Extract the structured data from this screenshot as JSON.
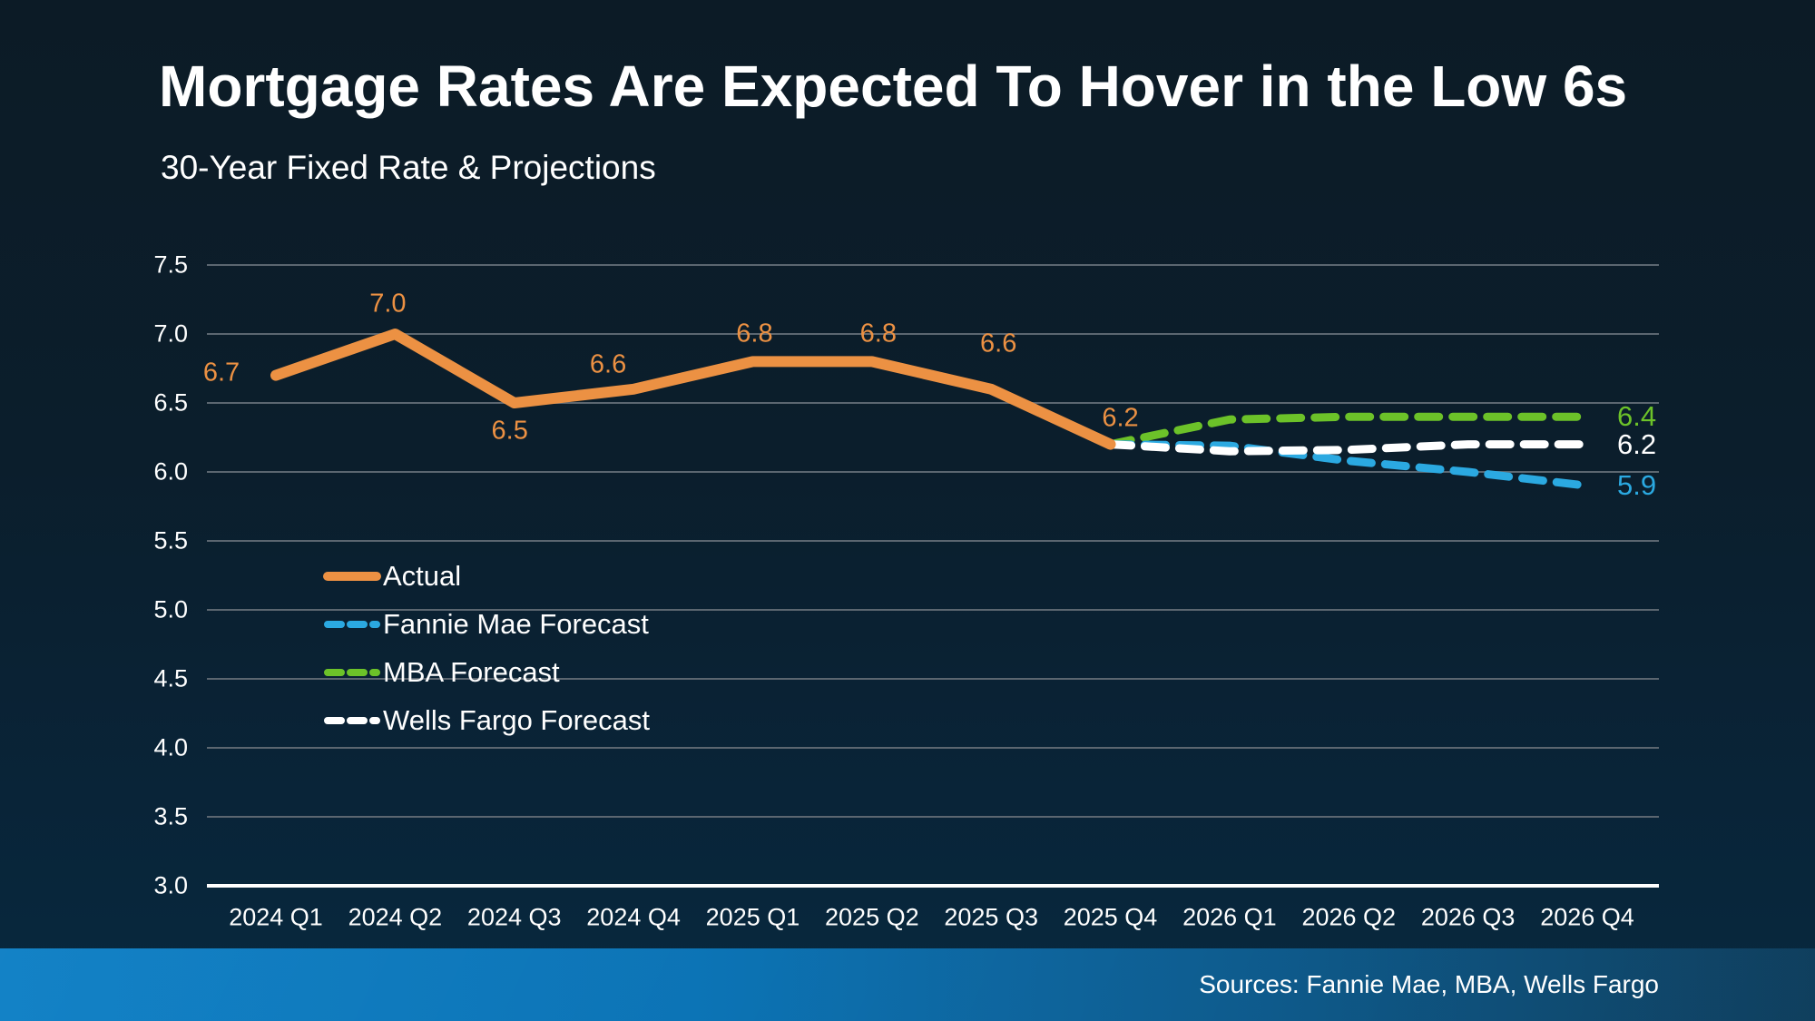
{
  "header": {
    "title": "Mortgage Rates Are Expected To Hover in the Low 6s",
    "subtitle": "30-Year Fixed Rate & Projections"
  },
  "footer": {
    "sources": "Sources: Fannie Mae, MBA, Wells Fargo"
  },
  "chart_data": {
    "type": "line",
    "title": "Mortgage Rates Are Expected To Hover in the Low 6s",
    "subtitle": "30-Year Fixed Rate & Projections",
    "categories": [
      "2024 Q1",
      "2024 Q2",
      "2024 Q3",
      "2024 Q4",
      "2025 Q1",
      "2025 Q2",
      "2025 Q3",
      "2025 Q4",
      "2026 Q1",
      "2026 Q2",
      "2026 Q3",
      "2026 Q4"
    ],
    "y_ticks": [
      "7.5",
      "7.0",
      "6.5",
      "6.0",
      "5.5",
      "5.0",
      "4.5",
      "4.0",
      "3.5",
      "3.0"
    ],
    "ylim": [
      3.0,
      7.5
    ],
    "grid": "horizontal",
    "legend_position": "inside-left",
    "colors": {
      "actual": "#ec9143",
      "fannie_mae": "#2ba9e1",
      "mba": "#6cc229",
      "wells_fargo": "#ffffff",
      "gridline": "#5b6670",
      "axis_line": "#ffffff",
      "footer_bar_left": "#0a7dc4",
      "footer_bar_right": "#114668"
    },
    "series": [
      {
        "name": "MBA Forecast",
        "color": "#6cc229",
        "dash": true,
        "start_index": 7,
        "values": [
          6.2,
          6.38,
          6.4,
          6.4,
          6.4
        ],
        "end_label": "6.4"
      },
      {
        "name": "Fannie Mae Forecast",
        "color": "#2ba9e1",
        "dash": true,
        "start_index": 7,
        "values": [
          6.2,
          6.19,
          6.08,
          6.0,
          5.9
        ],
        "end_label": "5.9"
      },
      {
        "name": "Wells Fargo Forecast",
        "color": "#ffffff",
        "dash": true,
        "start_index": 7,
        "values": [
          6.2,
          6.15,
          6.16,
          6.2,
          6.2
        ],
        "end_label": "6.2"
      },
      {
        "name": "Actual",
        "color": "#ec9143",
        "dash": false,
        "start_index": 0,
        "values": [
          6.7,
          7.0,
          6.5,
          6.6,
          6.8,
          6.8,
          6.6,
          6.2
        ],
        "point_labels": [
          "6.7",
          "7.0",
          "6.5",
          "6.6",
          "6.8",
          "6.8",
          "6.6",
          "6.2"
        ]
      }
    ],
    "legend": [
      {
        "label": "Actual",
        "color": "#ec9143",
        "dash": false
      },
      {
        "label": "Fannie Mae Forecast",
        "color": "#2ba9e1",
        "dash": true
      },
      {
        "label": "MBA Forecast",
        "color": "#6cc229",
        "dash": true
      },
      {
        "label": "Wells Fargo Forecast",
        "color": "#ffffff",
        "dash": true
      }
    ]
  }
}
